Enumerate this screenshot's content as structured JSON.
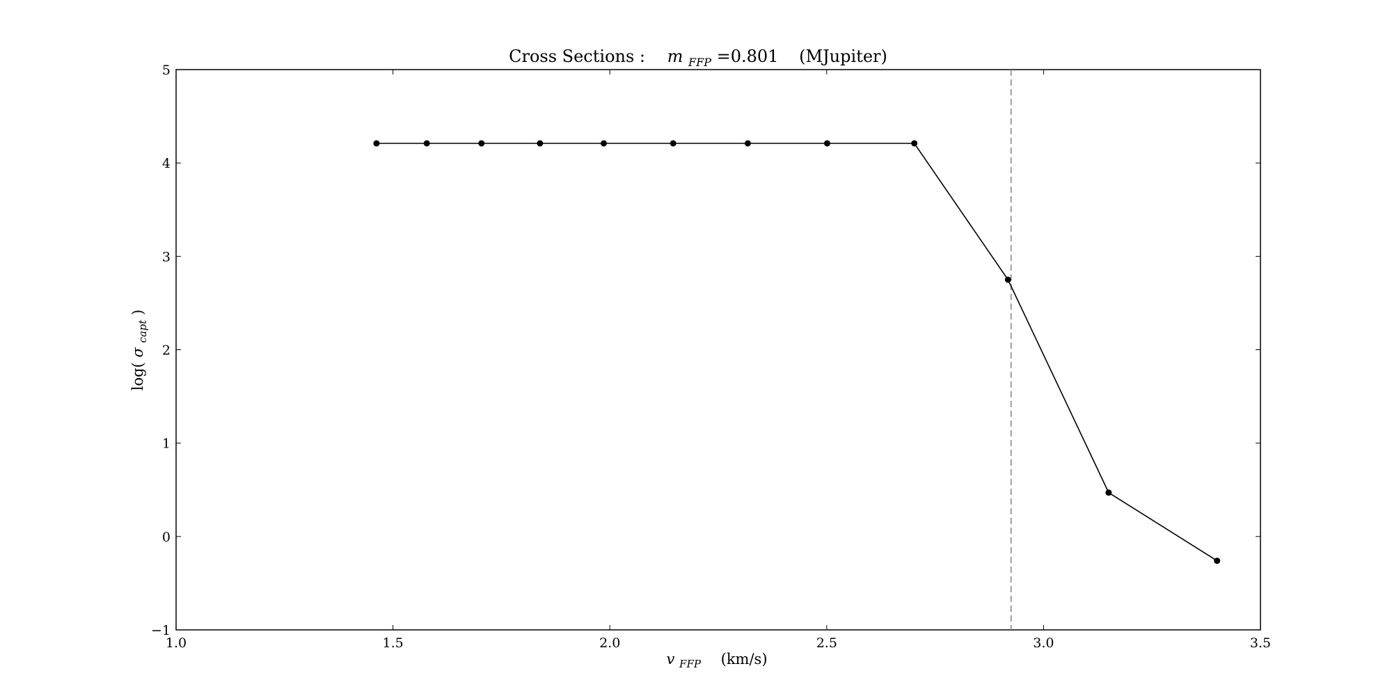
{
  "chart_data": {
    "type": "line",
    "title": {
      "prefix": "Cross    Sections :",
      "var": "m",
      "sub": "FFP",
      "eq": " =0.801",
      "unit": "(MJupiter)"
    },
    "xlabel": {
      "var": "v",
      "sub": "FFP",
      "unit": "(km/s)"
    },
    "ylabel": {
      "prefix": "log(",
      "var": "σ",
      "sub": "capt",
      "suffix": ")"
    },
    "xlim": [
      1.0,
      3.5
    ],
    "ylim": [
      -1,
      5
    ],
    "xticks": [
      1.0,
      1.5,
      2.0,
      2.5,
      3.0,
      3.5
    ],
    "xtick_labels": [
      "1.0",
      "1.5",
      "2.0",
      "2.5",
      "3.0",
      "3.5"
    ],
    "yticks": [
      -1,
      0,
      1,
      2,
      3,
      4,
      5
    ],
    "ytick_labels": [
      "−1",
      "0",
      "1",
      "2",
      "3",
      "4",
      "5"
    ],
    "grid": false,
    "series": [
      {
        "x": [
          1.462,
          1.578,
          1.704,
          1.839,
          1.986,
          2.146,
          2.318,
          2.501,
          2.702,
          2.918,
          3.15,
          3.4
        ],
        "y": [
          4.21,
          4.21,
          4.21,
          4.21,
          4.21,
          4.21,
          4.21,
          4.21,
          4.21,
          2.75,
          0.47,
          -0.26
        ],
        "color": "#000000",
        "marker": "circle"
      }
    ],
    "vline": {
      "x": 2.925,
      "style": "dashed",
      "color": "#808080"
    }
  }
}
